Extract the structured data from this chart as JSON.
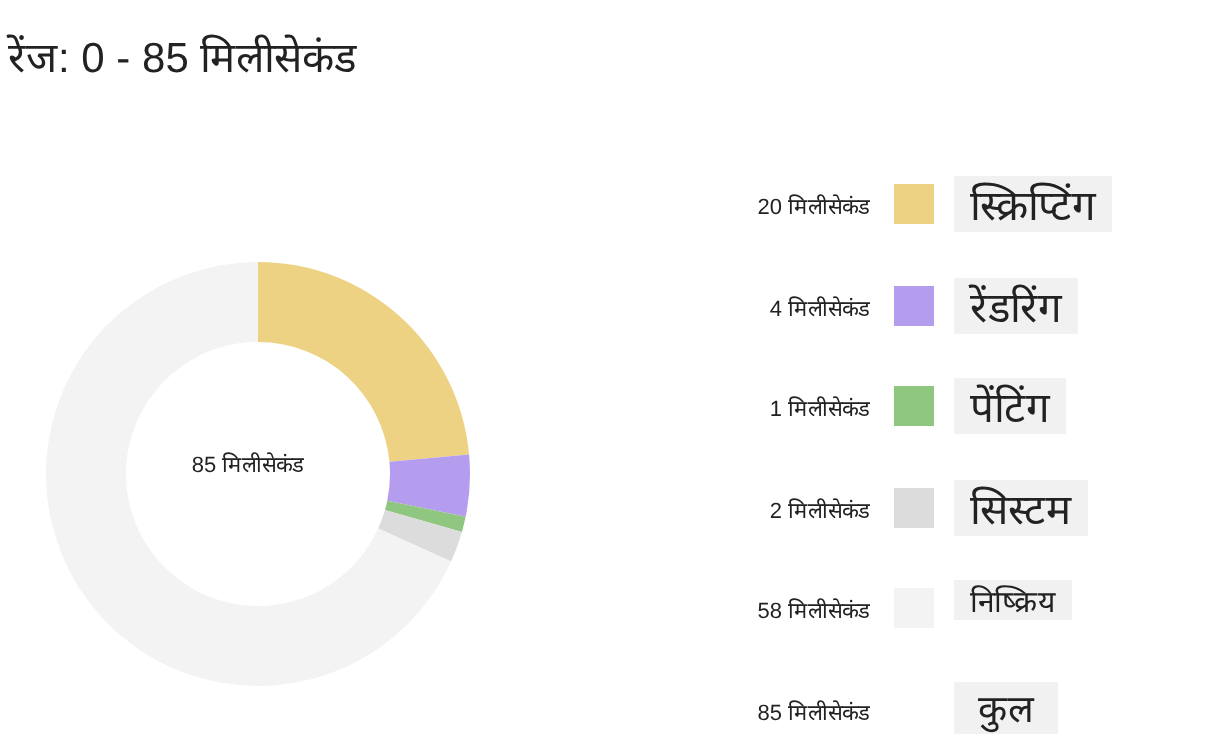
{
  "chart_data": {
    "type": "donut",
    "title": "रेंज: 0 - 85 मिलीसेकंड",
    "categories": [
      "स्क्रिप्टिंग",
      "रेंडरिंग",
      "पेंटिंग",
      "सिस्टम",
      "निष्क्रिय"
    ],
    "values": [
      20,
      4,
      1,
      2,
      58
    ],
    "value_labels": [
      "20 मिलीसेकंड",
      "4 मिलीसेकंड",
      "1 मिलीसेकंड",
      "2 मिलीसेकंड",
      "58 मिलीसेकंड"
    ],
    "colors": [
      "#eed283",
      "#b49cef",
      "#8fc680",
      "#dcdcdc",
      "#f3f3f3"
    ],
    "legend": "right",
    "annotations": [
      "85 मिलीसेकंड",
      "85 मिलीसेकंड",
      "कुल"
    ]
  }
}
